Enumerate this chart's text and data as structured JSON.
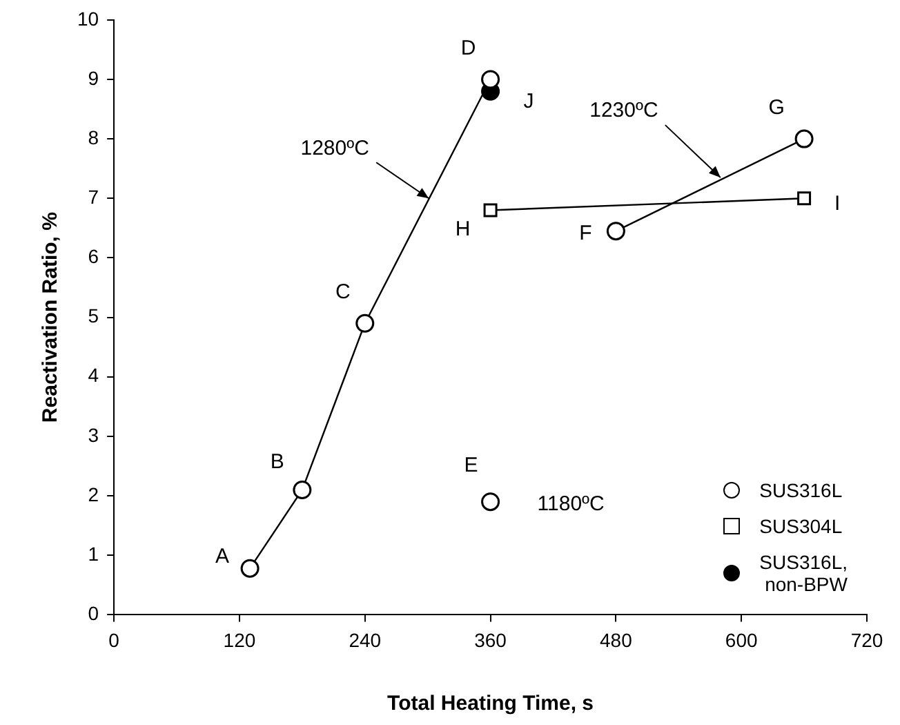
{
  "chart_data": {
    "type": "scatter",
    "xlabel": "Total Heating Time, s",
    "ylabel": "Reactivation Ratio, %",
    "xlim": [
      0,
      720
    ],
    "xticks": [
      0,
      120,
      240,
      360,
      480,
      600,
      720
    ],
    "ylim": [
      0,
      10
    ],
    "yticks": [
      0,
      1,
      2,
      3,
      4,
      5,
      6,
      7,
      8,
      9,
      10
    ],
    "grid": false,
    "legend": "bottom right",
    "marker": "circle",
    "series": [
      {
        "name": "SUS316L",
        "type": "line",
        "color": "#000000",
        "x": [
          130,
          180,
          240,
          360
        ],
        "values": [
          0.78,
          2.1,
          4.9,
          9.0
        ]
      },
      {
        "type": "line",
        "color": "#000000",
        "x": [
          480,
          660
        ],
        "values": [
          6.45,
          8.0
        ]
      },
      {
        "type": "scatter",
        "color": "#000000",
        "x": [
          360
        ],
        "values": [
          1.9
        ]
      },
      {
        "name": "SUS304L",
        "type": "line",
        "color": "#000000",
        "marker": "square",
        "x": [
          360,
          660
        ],
        "values": [
          6.8,
          7.0
        ]
      },
      {
        "name": "SUS316L,\nnon-BPW",
        "type": "scatter",
        "color": "#000000",
        "colors": [
          "#000000"
        ],
        "x": [
          360
        ],
        "values": [
          8.8
        ]
      }
    ],
    "annotations": [
      {
        "text": "A",
        "x": 130,
        "y": 0.78
      },
      {
        "text": "B",
        "x": 180,
        "y": 2.1
      },
      {
        "text": "C",
        "x": 240,
        "y": 4.9
      },
      {
        "text": "D",
        "x": 360,
        "y": 9.0
      },
      {
        "text": "E",
        "x": 360,
        "y": 1.9
      },
      {
        "text": "F",
        "x": 480,
        "y": 6.45
      },
      {
        "text": "G",
        "x": 660,
        "y": 8.0
      },
      {
        "text": "H",
        "x": 360,
        "y": 6.8
      },
      {
        "text": "I",
        "x": 660,
        "y": 7.0
      },
      {
        "text": "J",
        "x": 360,
        "y": 8.8
      },
      {
        "text": "1280ºC",
        "x": 301,
        "y": 7.0
      },
      {
        "text": "1230ºC",
        "x": 580,
        "y": 7.35
      },
      {
        "text": "1180ºC",
        "x": 360,
        "y": 1.9
      }
    ]
  }
}
